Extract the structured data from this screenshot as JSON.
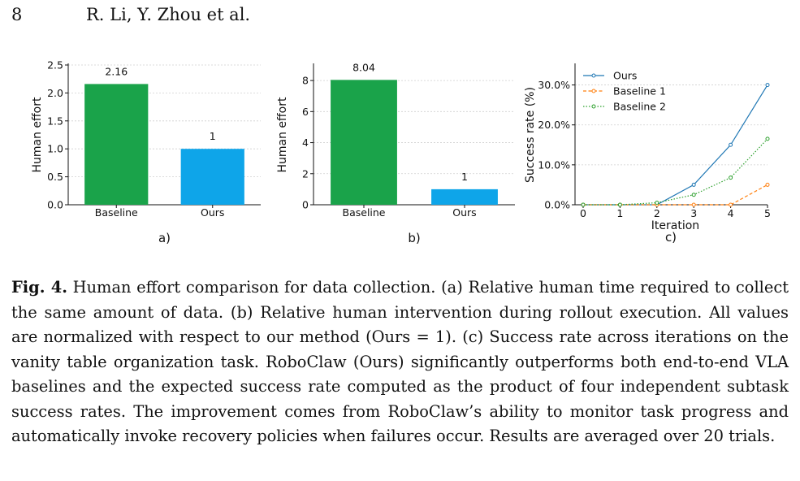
{
  "header": {
    "page_number": "8",
    "authors": "R. Li, Y. Zhou et al."
  },
  "caption": {
    "label": "Fig. 4.",
    "text": "Human effort comparison for data collection. (a) Relative human time required to collect the same amount of data. (b) Relative human intervention during rollout execution. All values are normalized with respect to our method (Ours = 1). (c) Success rate across iterations on the vanity table organization task. RoboClaw (Ours) significantly outperforms both end-to-end VLA baselines and the expected success rate computed as the product of four independent subtask success rates. The improvement comes from RoboClaw’s ability to monitor task progress and automatically invoke recovery policies when failures occur. Results are averaged over 20 trials."
  },
  "chart_data": [
    {
      "type": "bar",
      "panel_label": "a)",
      "ylabel": "Human effort",
      "categories": [
        "Baseline",
        "Ours"
      ],
      "values": [
        2.16,
        1
      ],
      "value_labels": [
        "2.16",
        "1"
      ],
      "bar_colors": [
        "#1aa34a",
        "#0ea5e9"
      ],
      "ylim": [
        0,
        2.5
      ],
      "yticks": [
        0,
        0.5,
        1,
        1.5,
        2,
        2.5
      ],
      "ytick_labels": [
        "0.0",
        "0.5",
        "1.0",
        "1.5",
        "2.0",
        "2.5"
      ],
      "grid": true
    },
    {
      "type": "bar",
      "panel_label": "b)",
      "ylabel": "Human effort",
      "categories": [
        "Baseline",
        "Ours"
      ],
      "values": [
        8.04,
        1
      ],
      "value_labels": [
        "8.04",
        "1"
      ],
      "bar_colors": [
        "#1aa34a",
        "#0ea5e9"
      ],
      "ylim": [
        0,
        9
      ],
      "yticks": [
        0,
        2,
        4,
        6,
        8
      ],
      "ytick_labels": [
        "0",
        "2",
        "4",
        "6",
        "8"
      ],
      "grid": true
    },
    {
      "type": "line",
      "panel_label": "c)",
      "xlabel": "Iteration",
      "ylabel": "Success rate (%)",
      "x": [
        0,
        1,
        2,
        3,
        4,
        5
      ],
      "xtick_labels": [
        "0",
        "1",
        "2",
        "3",
        "4",
        "5"
      ],
      "xlim": [
        0,
        5
      ],
      "ylim": [
        0,
        0.35
      ],
      "yticks": [
        0,
        0.1,
        0.2,
        0.3
      ],
      "ytick_labels": [
        "0.0%",
        "10.0%",
        "20.0%",
        "30.0%"
      ],
      "grid": true,
      "legend": "top-left",
      "series": [
        {
          "name": "Ours",
          "color": "#1f77b4",
          "style": "solid",
          "x": [
            0,
            1,
            2,
            3,
            4,
            5
          ],
          "values": [
            0,
            0,
            0,
            0.05,
            0.15,
            0.3
          ]
        },
        {
          "name": "Baseline 1",
          "color": "#ff7f0e",
          "style": "dashed",
          "x": [
            0,
            1,
            2,
            3,
            4,
            5
          ],
          "values": [
            0,
            0,
            0,
            0,
            0,
            0.05
          ]
        },
        {
          "name": "Baseline 2",
          "color": "#2ca02c",
          "style": "dotted",
          "x": [
            0,
            1,
            2,
            3,
            4,
            5
          ],
          "values": [
            0,
            0,
            0.005,
            0.025,
            0.068,
            0.165
          ]
        }
      ]
    }
  ]
}
